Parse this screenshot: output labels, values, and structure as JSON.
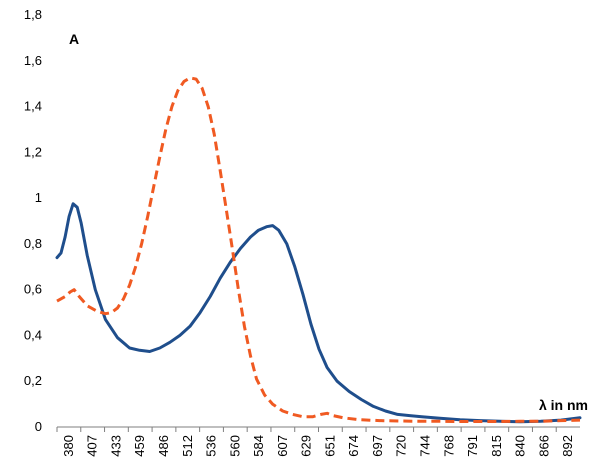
{
  "chart_data": {
    "type": "line",
    "corner_label": "A",
    "xlabel": "λ in nm",
    "ylabel": "",
    "ylim": [
      0,
      1.8
    ],
    "xlim": [
      380,
      899
    ],
    "grid": false,
    "y_ticks": [
      "0",
      "0,2",
      "0,4",
      "0,6",
      "0,8",
      "1",
      "1,2",
      "1,4",
      "1,6",
      "1,8"
    ],
    "x_ticks": [
      "380",
      "407",
      "433",
      "459",
      "486",
      "512",
      "536",
      "560",
      "584",
      "607",
      "629",
      "651",
      "674",
      "697",
      "720",
      "744",
      "768",
      "791",
      "815",
      "840",
      "866",
      "892"
    ],
    "series": [
      {
        "style": "solid",
        "color": "#1f4e8c",
        "points": [
          [
            380,
            0.74
          ],
          [
            384,
            0.76
          ],
          [
            388,
            0.83
          ],
          [
            392,
            0.92
          ],
          [
            396,
            0.975
          ],
          [
            400,
            0.96
          ],
          [
            404,
            0.89
          ],
          [
            410,
            0.75
          ],
          [
            418,
            0.6
          ],
          [
            428,
            0.47
          ],
          [
            440,
            0.39
          ],
          [
            452,
            0.345
          ],
          [
            462,
            0.335
          ],
          [
            472,
            0.33
          ],
          [
            482,
            0.345
          ],
          [
            492,
            0.37
          ],
          [
            502,
            0.4
          ],
          [
            512,
            0.44
          ],
          [
            522,
            0.5
          ],
          [
            532,
            0.57
          ],
          [
            542,
            0.65
          ],
          [
            552,
            0.72
          ],
          [
            562,
            0.78
          ],
          [
            572,
            0.83
          ],
          [
            580,
            0.86
          ],
          [
            588,
            0.875
          ],
          [
            594,
            0.88
          ],
          [
            600,
            0.86
          ],
          [
            608,
            0.8
          ],
          [
            616,
            0.7
          ],
          [
            624,
            0.58
          ],
          [
            632,
            0.45
          ],
          [
            640,
            0.34
          ],
          [
            648,
            0.26
          ],
          [
            658,
            0.2
          ],
          [
            670,
            0.155
          ],
          [
            682,
            0.12
          ],
          [
            694,
            0.09
          ],
          [
            706,
            0.07
          ],
          [
            718,
            0.055
          ],
          [
            730,
            0.05
          ],
          [
            742,
            0.045
          ],
          [
            760,
            0.038
          ],
          [
            780,
            0.032
          ],
          [
            800,
            0.028
          ],
          [
            820,
            0.025
          ],
          [
            840,
            0.023
          ],
          [
            860,
            0.025
          ],
          [
            880,
            0.03
          ],
          [
            899,
            0.04
          ]
        ]
      },
      {
        "style": "dashed",
        "color": "#f05a22",
        "points": [
          [
            380,
            0.55
          ],
          [
            388,
            0.57
          ],
          [
            393,
            0.59
          ],
          [
            397,
            0.6
          ],
          [
            402,
            0.57
          ],
          [
            410,
            0.53
          ],
          [
            420,
            0.505
          ],
          [
            428,
            0.495
          ],
          [
            434,
            0.5
          ],
          [
            440,
            0.52
          ],
          [
            446,
            0.56
          ],
          [
            452,
            0.62
          ],
          [
            458,
            0.7
          ],
          [
            464,
            0.8
          ],
          [
            470,
            0.92
          ],
          [
            476,
            1.05
          ],
          [
            482,
            1.18
          ],
          [
            488,
            1.3
          ],
          [
            494,
            1.4
          ],
          [
            500,
            1.47
          ],
          [
            506,
            1.51
          ],
          [
            512,
            1.525
          ],
          [
            518,
            1.52
          ],
          [
            524,
            1.48
          ],
          [
            530,
            1.4
          ],
          [
            536,
            1.28
          ],
          [
            542,
            1.12
          ],
          [
            548,
            0.95
          ],
          [
            554,
            0.78
          ],
          [
            560,
            0.6
          ],
          [
            566,
            0.44
          ],
          [
            572,
            0.31
          ],
          [
            578,
            0.21
          ],
          [
            586,
            0.14
          ],
          [
            594,
            0.1
          ],
          [
            604,
            0.07
          ],
          [
            614,
            0.055
          ],
          [
            624,
            0.045
          ],
          [
            634,
            0.045
          ],
          [
            642,
            0.055
          ],
          [
            648,
            0.06
          ],
          [
            654,
            0.05
          ],
          [
            664,
            0.04
          ],
          [
            680,
            0.032
          ],
          [
            700,
            0.028
          ],
          [
            720,
            0.026
          ],
          [
            740,
            0.025
          ],
          [
            760,
            0.025
          ],
          [
            780,
            0.024
          ],
          [
            800,
            0.024
          ],
          [
            820,
            0.024
          ],
          [
            840,
            0.025
          ],
          [
            860,
            0.025
          ],
          [
            880,
            0.028
          ],
          [
            899,
            0.03
          ]
        ]
      }
    ]
  }
}
